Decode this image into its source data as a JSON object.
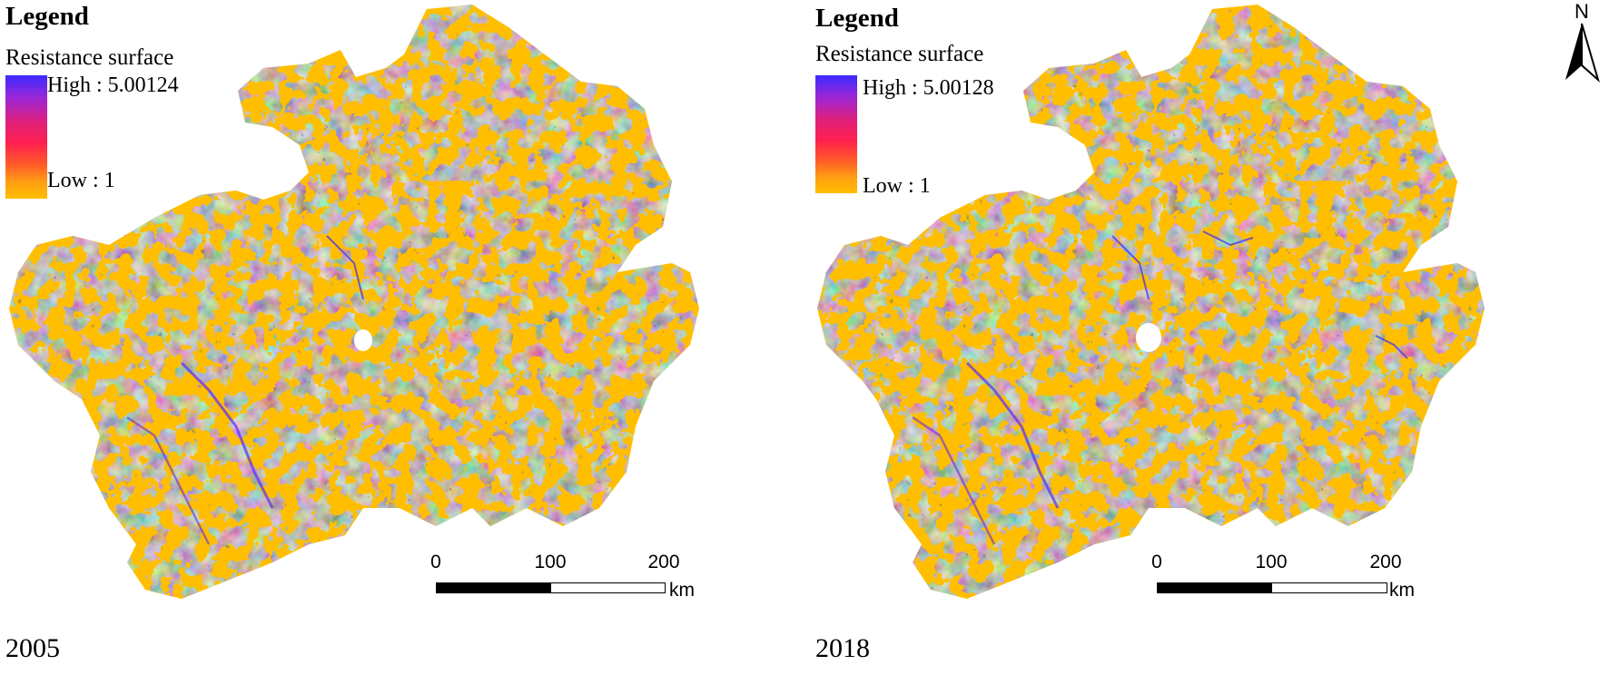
{
  "colors": {
    "low": "#ffbe00",
    "mid": "#ff1f4e",
    "high": "#3a2bff"
  },
  "panels": [
    {
      "legend_title": "Legend",
      "legend_subtitle": "Resistance surface",
      "high_label": "High : 5.00124",
      "low_label": "Low : 1",
      "year": "2005"
    },
    {
      "legend_title": "Legend",
      "legend_subtitle": "Resistance surface",
      "high_label": "High : 5.00128",
      "low_label": "Low : 1",
      "year": "2018"
    }
  ],
  "scalebar": {
    "ticks": [
      "0",
      "100",
      "200"
    ],
    "unit": "km"
  },
  "north_arrow": {
    "label": "N",
    "icon": "north-arrow-icon"
  }
}
